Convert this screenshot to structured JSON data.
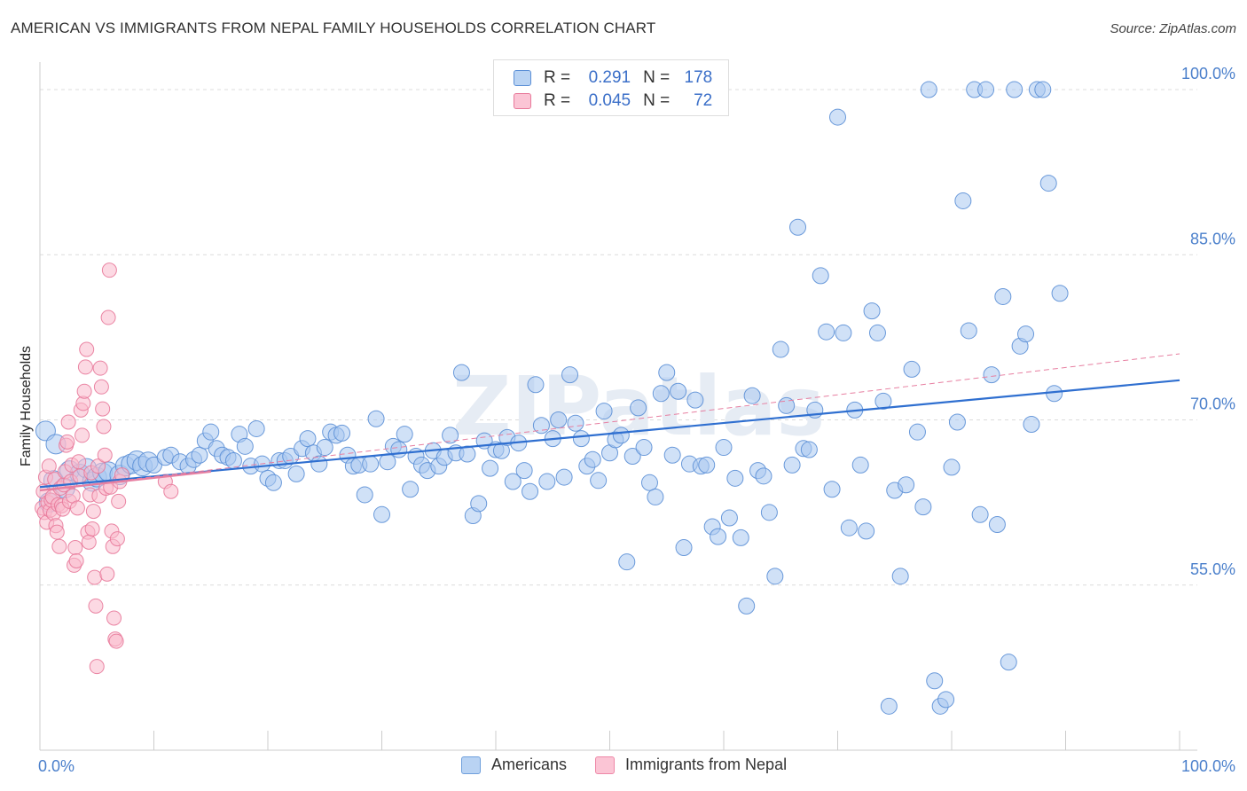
{
  "title": "AMERICAN VS IMMIGRANTS FROM NEPAL FAMILY HOUSEHOLDS CORRELATION CHART",
  "source": "Source: ZipAtlas.com",
  "watermark": "ZIPatlas",
  "legend": {
    "rows": [
      {
        "r_label": "R =",
        "r_value": "0.291",
        "n_label": "N =",
        "n_value": "178",
        "color": "#a9c8f0",
        "border": "#5b8fd6"
      },
      {
        "r_label": "R =",
        "r_value": "0.045",
        "n_label": "N =",
        "n_value": "72",
        "color": "#f9b9cc",
        "border": "#e8799a"
      }
    ]
  },
  "bottom_legend": [
    {
      "label": "Americans",
      "color": "#b9d3f3",
      "border": "#6f9fdc"
    },
    {
      "label": "Immigrants from Nepal",
      "color": "#fbc5d5",
      "border": "#ee88a7"
    }
  ],
  "chart_data": {
    "type": "scatter",
    "title": "AMERICAN VS IMMIGRANTS FROM NEPAL FAMILY HOUSEHOLDS CORRELATION CHART",
    "xlabel": "",
    "ylabel": "Family Households",
    "xlim": [
      0,
      100
    ],
    "ylim": [
      40,
      102.5
    ],
    "x_tick_labels": [
      {
        "value": 0,
        "label": "0.0%"
      },
      {
        "value": 100,
        "label": "100.0%"
      }
    ],
    "y_tick_labels": [
      {
        "value": 55,
        "label": "55.0%"
      },
      {
        "value": 70,
        "label": "70.0%"
      },
      {
        "value": 85,
        "label": "85.0%"
      },
      {
        "value": 100,
        "label": "100.0%"
      }
    ],
    "gridlines": [
      55,
      70,
      85,
      100
    ],
    "series": [
      {
        "name": "Americans",
        "color": "#a9c8f0",
        "stroke": "#5b8fd6",
        "trend": {
          "x0": 0,
          "y0": 63.9,
          "x1": 100,
          "y1": 73.6,
          "style": "solid",
          "color": "#2f6fd0"
        },
        "points": [
          [
            0.5,
            69.0
          ],
          [
            0.8,
            62.5
          ],
          [
            1.2,
            64.5
          ],
          [
            1.4,
            67.8
          ],
          [
            2.2,
            63.8
          ],
          [
            2.6,
            65.4
          ],
          [
            3.5,
            65.1
          ],
          [
            4.1,
            65.6
          ],
          [
            4.6,
            64.4
          ],
          [
            5.0,
            64.8
          ],
          [
            5.5,
            65.2
          ],
          [
            6.0,
            65.3
          ],
          [
            7.0,
            65.0
          ],
          [
            7.5,
            65.8
          ],
          [
            8.0,
            66.0
          ],
          [
            8.5,
            66.3
          ],
          [
            9.0,
            65.8
          ],
          [
            9.5,
            66.2
          ],
          [
            10.0,
            65.9
          ],
          [
            11.0,
            66.6
          ],
          [
            11.5,
            66.8
          ],
          [
            12.3,
            66.2
          ],
          [
            13.0,
            65.8
          ],
          [
            13.5,
            66.4
          ],
          [
            14.0,
            66.8
          ],
          [
            14.5,
            68.1
          ],
          [
            15.0,
            68.9
          ],
          [
            15.5,
            67.4
          ],
          [
            16.0,
            66.8
          ],
          [
            16.5,
            66.6
          ],
          [
            17.0,
            66.3
          ],
          [
            17.5,
            68.7
          ],
          [
            18.0,
            67.6
          ],
          [
            18.5,
            65.8
          ],
          [
            19.0,
            69.2
          ],
          [
            19.5,
            66.0
          ],
          [
            20.0,
            64.7
          ],
          [
            20.5,
            64.3
          ],
          [
            21.0,
            66.3
          ],
          [
            21.5,
            66.3
          ],
          [
            22.0,
            66.7
          ],
          [
            22.5,
            65.1
          ],
          [
            23.0,
            67.4
          ],
          [
            23.5,
            68.3
          ],
          [
            24.0,
            67.0
          ],
          [
            24.5,
            66.0
          ],
          [
            25.0,
            67.5
          ],
          [
            25.5,
            68.9
          ],
          [
            26.0,
            68.6
          ],
          [
            26.5,
            68.8
          ],
          [
            27.0,
            66.8
          ],
          [
            27.5,
            65.8
          ],
          [
            28.0,
            65.9
          ],
          [
            28.5,
            63.2
          ],
          [
            29.0,
            66.0
          ],
          [
            29.5,
            70.1
          ],
          [
            30.0,
            61.4
          ],
          [
            30.5,
            66.2
          ],
          [
            31.0,
            67.6
          ],
          [
            31.5,
            67.3
          ],
          [
            32.0,
            68.7
          ],
          [
            32.5,
            63.7
          ],
          [
            33.0,
            66.7
          ],
          [
            33.5,
            65.9
          ],
          [
            34.0,
            65.4
          ],
          [
            34.5,
            67.2
          ],
          [
            35.0,
            65.8
          ],
          [
            35.5,
            66.6
          ],
          [
            36.0,
            68.6
          ],
          [
            36.5,
            67.0
          ],
          [
            37.0,
            74.3
          ],
          [
            37.5,
            66.9
          ],
          [
            38.0,
            61.3
          ],
          [
            38.5,
            62.4
          ],
          [
            39.0,
            68.1
          ],
          [
            39.5,
            65.6
          ],
          [
            40.0,
            67.3
          ],
          [
            40.5,
            67.2
          ],
          [
            41.0,
            68.4
          ],
          [
            41.5,
            64.4
          ],
          [
            42.0,
            67.9
          ],
          [
            42.5,
            65.4
          ],
          [
            43.0,
            63.5
          ],
          [
            43.5,
            73.2
          ],
          [
            44.0,
            69.5
          ],
          [
            44.5,
            64.4
          ],
          [
            45.0,
            68.3
          ],
          [
            45.5,
            70.0
          ],
          [
            46.0,
            64.8
          ],
          [
            46.5,
            74.1
          ],
          [
            47.0,
            69.7
          ],
          [
            47.5,
            68.3
          ],
          [
            48.0,
            65.8
          ],
          [
            48.5,
            66.4
          ],
          [
            49.0,
            64.5
          ],
          [
            49.5,
            70.8
          ],
          [
            50.0,
            67.0
          ],
          [
            50.5,
            68.2
          ],
          [
            51.0,
            68.6
          ],
          [
            51.5,
            57.1
          ],
          [
            52.0,
            66.7
          ],
          [
            52.5,
            71.1
          ],
          [
            53.0,
            67.5
          ],
          [
            53.5,
            64.3
          ],
          [
            54.0,
            63.0
          ],
          [
            54.5,
            72.4
          ],
          [
            55.0,
            74.3
          ],
          [
            55.5,
            66.8
          ],
          [
            56.0,
            72.6
          ],
          [
            56.5,
            58.4
          ],
          [
            57.0,
            66.0
          ],
          [
            57.5,
            71.8
          ],
          [
            58.0,
            65.8
          ],
          [
            58.5,
            65.9
          ],
          [
            59.0,
            60.3
          ],
          [
            59.5,
            59.4
          ],
          [
            60.0,
            67.5
          ],
          [
            60.5,
            61.1
          ],
          [
            61.0,
            64.7
          ],
          [
            61.5,
            59.3
          ],
          [
            62.0,
            53.1
          ],
          [
            62.5,
            72.2
          ],
          [
            63.0,
            65.4
          ],
          [
            63.5,
            64.9
          ],
          [
            64.0,
            61.6
          ],
          [
            64.5,
            55.8
          ],
          [
            65.0,
            76.4
          ],
          [
            65.5,
            71.3
          ],
          [
            66.0,
            65.9
          ],
          [
            66.5,
            87.5
          ],
          [
            67.0,
            67.4
          ],
          [
            67.5,
            67.3
          ],
          [
            68.0,
            70.9
          ],
          [
            68.5,
            83.1
          ],
          [
            69.0,
            78.0
          ],
          [
            69.5,
            63.7
          ],
          [
            70.0,
            97.5
          ],
          [
            70.5,
            77.9
          ],
          [
            71.0,
            60.2
          ],
          [
            71.5,
            70.9
          ],
          [
            72.0,
            65.9
          ],
          [
            72.5,
            59.9
          ],
          [
            73.0,
            79.9
          ],
          [
            73.5,
            77.9
          ],
          [
            74.0,
            71.7
          ],
          [
            74.5,
            44.0
          ],
          [
            75.0,
            63.6
          ],
          [
            75.5,
            55.8
          ],
          [
            76.0,
            64.1
          ],
          [
            76.5,
            74.6
          ],
          [
            77.0,
            68.9
          ],
          [
            77.5,
            62.1
          ],
          [
            78.0,
            100.0
          ],
          [
            78.5,
            46.3
          ],
          [
            79.0,
            44.0
          ],
          [
            79.5,
            44.6
          ],
          [
            80.0,
            65.7
          ],
          [
            80.5,
            69.8
          ],
          [
            81.0,
            89.9
          ],
          [
            81.5,
            78.1
          ],
          [
            82.0,
            100.0
          ],
          [
            82.5,
            61.4
          ],
          [
            83.0,
            100.0
          ],
          [
            83.5,
            74.1
          ],
          [
            84.0,
            60.5
          ],
          [
            84.5,
            81.2
          ],
          [
            85.0,
            48.0
          ],
          [
            85.5,
            100.0
          ],
          [
            86.0,
            76.7
          ],
          [
            86.5,
            77.8
          ],
          [
            87.0,
            69.6
          ],
          [
            87.5,
            100.0
          ],
          [
            88.0,
            100.0
          ],
          [
            88.5,
            91.5
          ],
          [
            89.0,
            72.4
          ],
          [
            89.5,
            81.5
          ]
        ]
      },
      {
        "name": "Immigrants from Nepal",
        "color": "#f9b9cc",
        "stroke": "#e8799a",
        "trend": {
          "x0": 0,
          "y0": 63.6,
          "x1": 100,
          "y1": 76.0,
          "style": "dashed",
          "color": "#e77fa1"
        },
        "trend_solid": {
          "x0": 0,
          "y0": 63.6,
          "x1": 15,
          "y1": 65.3
        },
        "points": [
          [
            0.2,
            62.0
          ],
          [
            0.3,
            63.5
          ],
          [
            0.4,
            61.6
          ],
          [
            0.5,
            64.8
          ],
          [
            0.6,
            60.7
          ],
          [
            0.7,
            62.5
          ],
          [
            0.8,
            65.8
          ],
          [
            0.9,
            61.8
          ],
          [
            1.0,
            62.7
          ],
          [
            1.1,
            63.0
          ],
          [
            1.2,
            61.5
          ],
          [
            1.3,
            64.6
          ],
          [
            1.4,
            60.4
          ],
          [
            1.5,
            59.8
          ],
          [
            1.6,
            62.3
          ],
          [
            1.7,
            58.5
          ],
          [
            1.8,
            63.8
          ],
          [
            1.9,
            62.2
          ],
          [
            2.0,
            61.9
          ],
          [
            2.1,
            64.1
          ],
          [
            2.2,
            65.3
          ],
          [
            2.3,
            67.7
          ],
          [
            2.4,
            68.0
          ],
          [
            2.5,
            69.8
          ],
          [
            2.6,
            62.6
          ],
          [
            2.7,
            64.4
          ],
          [
            2.8,
            65.9
          ],
          [
            2.9,
            63.1
          ],
          [
            3.0,
            56.8
          ],
          [
            3.1,
            58.4
          ],
          [
            3.2,
            57.2
          ],
          [
            3.3,
            62.0
          ],
          [
            3.4,
            66.2
          ],
          [
            3.5,
            64.9
          ],
          [
            3.6,
            70.9
          ],
          [
            3.7,
            68.6
          ],
          [
            3.8,
            71.5
          ],
          [
            3.9,
            72.6
          ],
          [
            4.0,
            74.8
          ],
          [
            4.1,
            76.4
          ],
          [
            4.2,
            59.8
          ],
          [
            4.3,
            58.9
          ],
          [
            4.4,
            63.2
          ],
          [
            4.5,
            65.2
          ],
          [
            4.6,
            60.1
          ],
          [
            4.7,
            61.7
          ],
          [
            4.8,
            55.7
          ],
          [
            4.9,
            53.1
          ],
          [
            5.0,
            47.6
          ],
          [
            5.1,
            65.8
          ],
          [
            5.2,
            63.1
          ],
          [
            5.3,
            74.7
          ],
          [
            5.4,
            73.0
          ],
          [
            5.5,
            71.0
          ],
          [
            5.6,
            69.4
          ],
          [
            5.7,
            66.8
          ],
          [
            5.8,
            63.8
          ],
          [
            5.9,
            56.0
          ],
          [
            6.0,
            79.3
          ],
          [
            6.1,
            83.6
          ],
          [
            6.2,
            63.9
          ],
          [
            6.3,
            59.9
          ],
          [
            6.4,
            58.5
          ],
          [
            6.5,
            52.0
          ],
          [
            6.6,
            50.1
          ],
          [
            6.7,
            49.9
          ],
          [
            6.8,
            59.2
          ],
          [
            6.9,
            62.6
          ],
          [
            7.0,
            64.4
          ],
          [
            7.2,
            65.0
          ],
          [
            11.0,
            64.4
          ],
          [
            11.5,
            63.5
          ]
        ]
      }
    ]
  }
}
